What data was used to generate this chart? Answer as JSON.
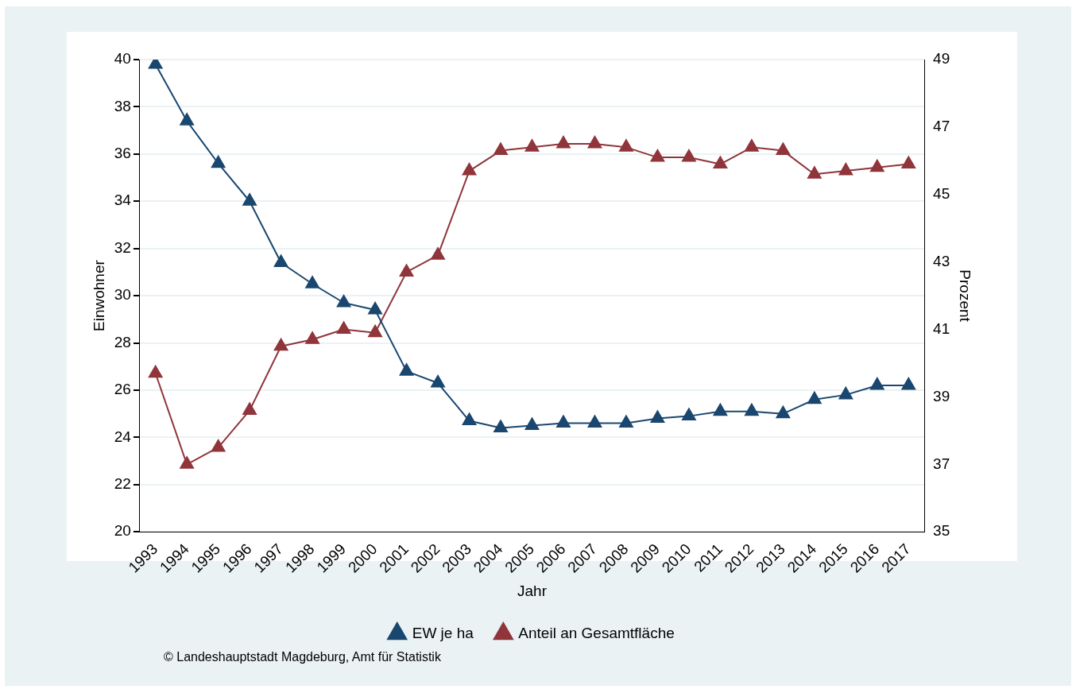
{
  "chart_data": {
    "type": "line",
    "xlabel": "Jahr",
    "ylabel": "Einwohner",
    "y2label": "Prozent",
    "categories": [
      "1993",
      "1994",
      "1995",
      "1996",
      "1997",
      "1998",
      "1999",
      "2000",
      "2001",
      "2002",
      "2003",
      "2004",
      "2005",
      "2006",
      "2007",
      "2008",
      "2009",
      "2010",
      "2011",
      "2012",
      "2013",
      "2014",
      "2015",
      "2016",
      "2017"
    ],
    "series": [
      {
        "name": "EW je ha",
        "color": "#1a476f",
        "values": [
          39.8,
          37.4,
          35.6,
          34.0,
          31.4,
          30.5,
          29.7,
          29.4,
          26.8,
          26.3,
          24.7,
          24.4,
          24.5,
          24.6,
          24.6,
          24.6,
          24.8,
          24.9,
          25.1,
          25.1,
          25.0,
          25.6,
          25.8,
          26.2,
          26.2
        ]
      },
      {
        "name": "Anteil an Gesamtfläche",
        "color": "#90353b",
        "axis": "y2",
        "values": [
          39.7,
          37.0,
          37.5,
          38.6,
          40.5,
          40.7,
          41.0,
          40.9,
          42.7,
          43.2,
          45.7,
          46.3,
          46.4,
          46.5,
          46.5,
          46.4,
          46.1,
          46.1,
          45.9,
          46.4,
          46.3,
          45.6,
          45.7,
          45.8,
          45.9
        ]
      }
    ],
    "ylim": [
      20,
      40
    ],
    "yticks": [
      20,
      22,
      24,
      26,
      28,
      30,
      32,
      34,
      36,
      38,
      40
    ],
    "y2lim": [
      35,
      49
    ],
    "y2ticks": [
      35,
      37,
      39,
      41,
      43,
      45,
      47,
      49
    ],
    "grid": "y",
    "legend": "bottom",
    "marker": "triangle",
    "line_style": "solid",
    "annotations": [
      "© Landeshauptstadt Magdeburg, Amt für Statistik"
    ]
  }
}
